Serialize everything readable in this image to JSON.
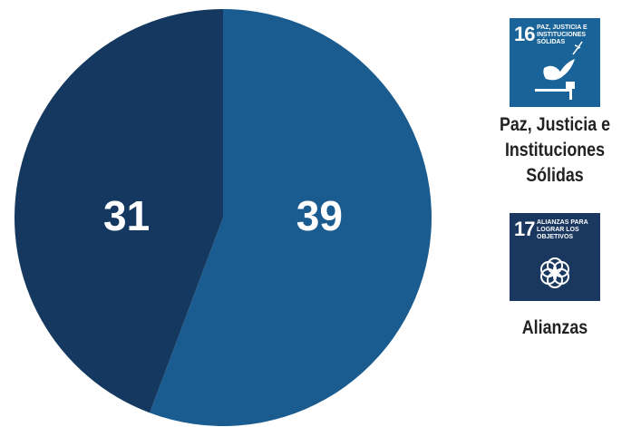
{
  "chart_data": {
    "type": "pie",
    "categories": [
      "Paz, Justicia e Instituciones Sólidas",
      "Alianzas"
    ],
    "values": [
      39,
      31
    ],
    "colors": [
      "#1b5c90",
      "#14385f"
    ],
    "icons": [
      {
        "number": "16",
        "text": "PAZ, JUSTICIA E INSTITUCIONES SÓLIDAS",
        "color": "#1a6399"
      },
      {
        "number": "17",
        "text": "ALIANZAS PARA LOGRAR LOS OBJETIVOS",
        "color": "#19375f"
      }
    ]
  }
}
